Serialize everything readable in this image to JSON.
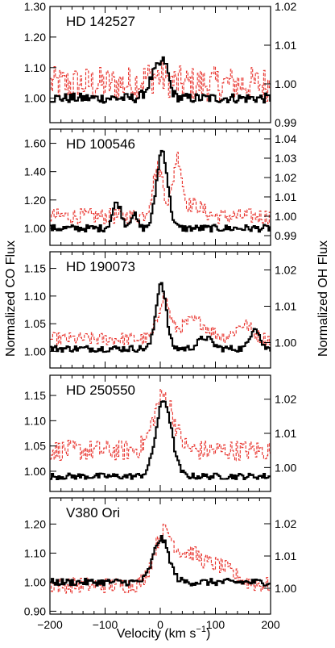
{
  "figure": {
    "x_label": "Velocity (km s",
    "x_label_sup": "−1",
    "x_label_close": ")",
    "left_label": "Normalized CO Flux",
    "right_label": "Normalized OH Flux"
  },
  "chart_data": {
    "type": "line",
    "xlim": [
      -200,
      200
    ],
    "x_ticks": [
      "−200",
      "−100",
      "0",
      "100",
      "200"
    ],
    "x_tick_values": [
      -200,
      -100,
      0,
      100,
      200
    ],
    "series_styles": {
      "CO": {
        "color": "#000000",
        "style": "solid-thick-step"
      },
      "OH": {
        "color": "#e8302a",
        "style": "dashed-step"
      }
    },
    "panels": [
      {
        "title": "HD 142527",
        "co_ylim": [
          0.92,
          1.3
        ],
        "co_ticks": [
          1.0,
          1.1,
          1.2,
          1.3
        ],
        "co_tick_labels": [
          "1.00",
          "1.10",
          "1.20",
          "1.30"
        ],
        "oh_ylim": [
          0.99,
          1.02
        ],
        "oh_ticks": [
          0.99,
          1.0,
          1.01,
          1.02
        ],
        "oh_tick_labels": [
          "0.99",
          "1.00",
          "1.01",
          "1.02"
        ],
        "co_profile": {
          "base": 1.0,
          "noise": 0.016,
          "features": [
            [
              -5,
              0.1,
              14
            ],
            [
              8,
              0.05,
              6
            ]
          ]
        },
        "oh_profile": {
          "base": 1.0,
          "noise": 0.0045,
          "features": [
            [
              -10,
              0.002,
              20
            ]
          ]
        }
      },
      {
        "title": "HD 100546",
        "co_ylim": [
          0.88,
          1.7
        ],
        "co_ticks": [
          1.0,
          1.2,
          1.4,
          1.6
        ],
        "co_tick_labels": [
          "1.00",
          "1.20",
          "1.40",
          "1.60"
        ],
        "oh_ylim": [
          0.985,
          1.045
        ],
        "oh_ticks": [
          0.99,
          1.0,
          1.01,
          1.02,
          1.03,
          1.04
        ],
        "oh_tick_labels": [
          "0.99",
          "1.00",
          "1.01",
          "1.02",
          "1.03",
          "1.04"
        ],
        "co_profile": {
          "base": 1.0,
          "noise": 0.025,
          "features": [
            [
              -80,
              0.18,
              8
            ],
            [
              -50,
              0.1,
              6
            ],
            [
              2,
              0.55,
              10
            ]
          ]
        },
        "oh_profile": {
          "base": 1.0,
          "noise": 0.004,
          "features": [
            [
              -5,
              0.025,
              10
            ],
            [
              30,
              0.03,
              8
            ],
            [
              60,
              0.006,
              15
            ]
          ]
        }
      },
      {
        "title": "HD 190073",
        "co_ylim": [
          0.97,
          1.18
        ],
        "co_ticks": [
          1.0,
          1.05,
          1.1,
          1.15
        ],
        "co_tick_labels": [
          "1.00",
          "1.05",
          "1.10",
          "1.15"
        ],
        "oh_ylim": [
          0.993,
          1.025
        ],
        "oh_ticks": [
          1.0,
          1.01,
          1.02
        ],
        "oh_tick_labels": [
          "1.00",
          "1.01",
          "1.02"
        ],
        "co_profile": {
          "base": 1.005,
          "noise": 0.006,
          "features": [
            [
              0,
              0.12,
              9
            ],
            [
              80,
              0.02,
              12
            ],
            [
              170,
              0.04,
              8
            ]
          ]
        },
        "oh_profile": {
          "base": 1.001,
          "noise": 0.0018,
          "features": [
            [
              5,
              0.011,
              10
            ],
            [
              60,
              0.005,
              25
            ],
            [
              150,
              0.004,
              15
            ]
          ]
        }
      },
      {
        "title": "HD 250550",
        "co_ylim": [
          0.96,
          1.19
        ],
        "co_ticks": [
          1.0,
          1.05,
          1.1,
          1.15
        ],
        "co_tick_labels": [
          "1.00",
          "1.05",
          "1.10",
          "1.15"
        ],
        "oh_ylim": [
          0.993,
          1.027
        ],
        "oh_ticks": [
          1.0,
          1.01,
          1.02
        ],
        "oh_tick_labels": [
          "1.00",
          "1.01",
          "1.02"
        ],
        "co_profile": {
          "base": 0.99,
          "noise": 0.006,
          "features": [
            [
              5,
              0.15,
              14
            ]
          ]
        },
        "oh_profile": {
          "base": 1.005,
          "noise": 0.003,
          "features": [
            [
              5,
              0.016,
              18
            ]
          ]
        }
      },
      {
        "title": "V380 Ori",
        "co_ylim": [
          0.89,
          1.29
        ],
        "co_ticks": [
          0.9,
          1.0,
          1.1,
          1.2
        ],
        "co_tick_labels": [
          "0.90",
          "1.00",
          "1.10",
          "1.20"
        ],
        "oh_ylim": [
          0.992,
          1.028
        ],
        "oh_ticks": [
          1.0,
          1.01,
          1.02
        ],
        "oh_tick_labels": [
          "1.00",
          "1.01",
          "1.02"
        ],
        "co_profile": {
          "base": 1.0,
          "noise": 0.012,
          "features": [
            [
              0,
              0.15,
              14
            ]
          ]
        },
        "oh_profile": {
          "base": 1.001,
          "noise": 0.0025,
          "features": [
            [
              5,
              0.016,
              18
            ],
            [
              50,
              0.008,
              20
            ],
            [
              100,
              0.006,
              30
            ]
          ]
        }
      }
    ]
  }
}
